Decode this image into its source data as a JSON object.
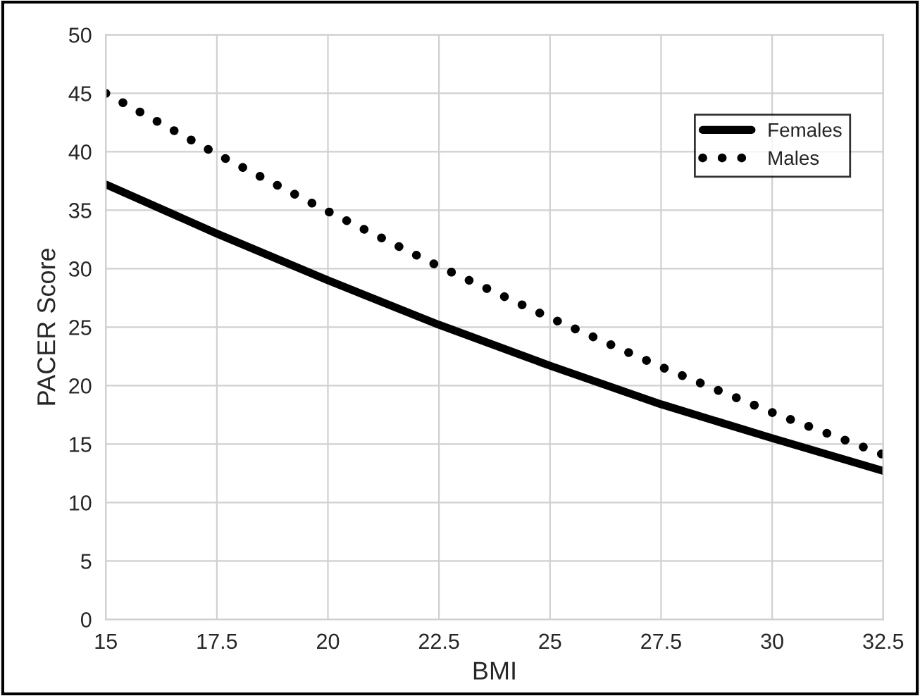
{
  "chart_data": {
    "type": "line",
    "xlabel": "BMI",
    "ylabel": "PACER Score",
    "x": [
      15,
      17.5,
      20,
      22.5,
      25,
      27.5,
      30,
      32.5
    ],
    "series": [
      {
        "name": "Females",
        "color": "#000000",
        "line_style": "solid",
        "marker": "none",
        "values": [
          37.2,
          33.0,
          29.0,
          25.2,
          21.7,
          18.4,
          15.5,
          12.7
        ]
      },
      {
        "name": "Males",
        "color": "#000000",
        "line_style": "dotted",
        "marker": "none",
        "values": [
          45.0,
          39.8,
          34.9,
          30.2,
          25.8,
          21.6,
          17.7,
          14.1
        ]
      }
    ],
    "xlim": [
      15,
      32.5
    ],
    "xticks": [
      15,
      17.5,
      20,
      22.5,
      25,
      27.5,
      30,
      32.5
    ],
    "ylim": [
      0,
      50
    ],
    "yticks": [
      0,
      5,
      10,
      15,
      20,
      25,
      30,
      35,
      40,
      45,
      50
    ],
    "grid": true,
    "legend": "top right"
  }
}
